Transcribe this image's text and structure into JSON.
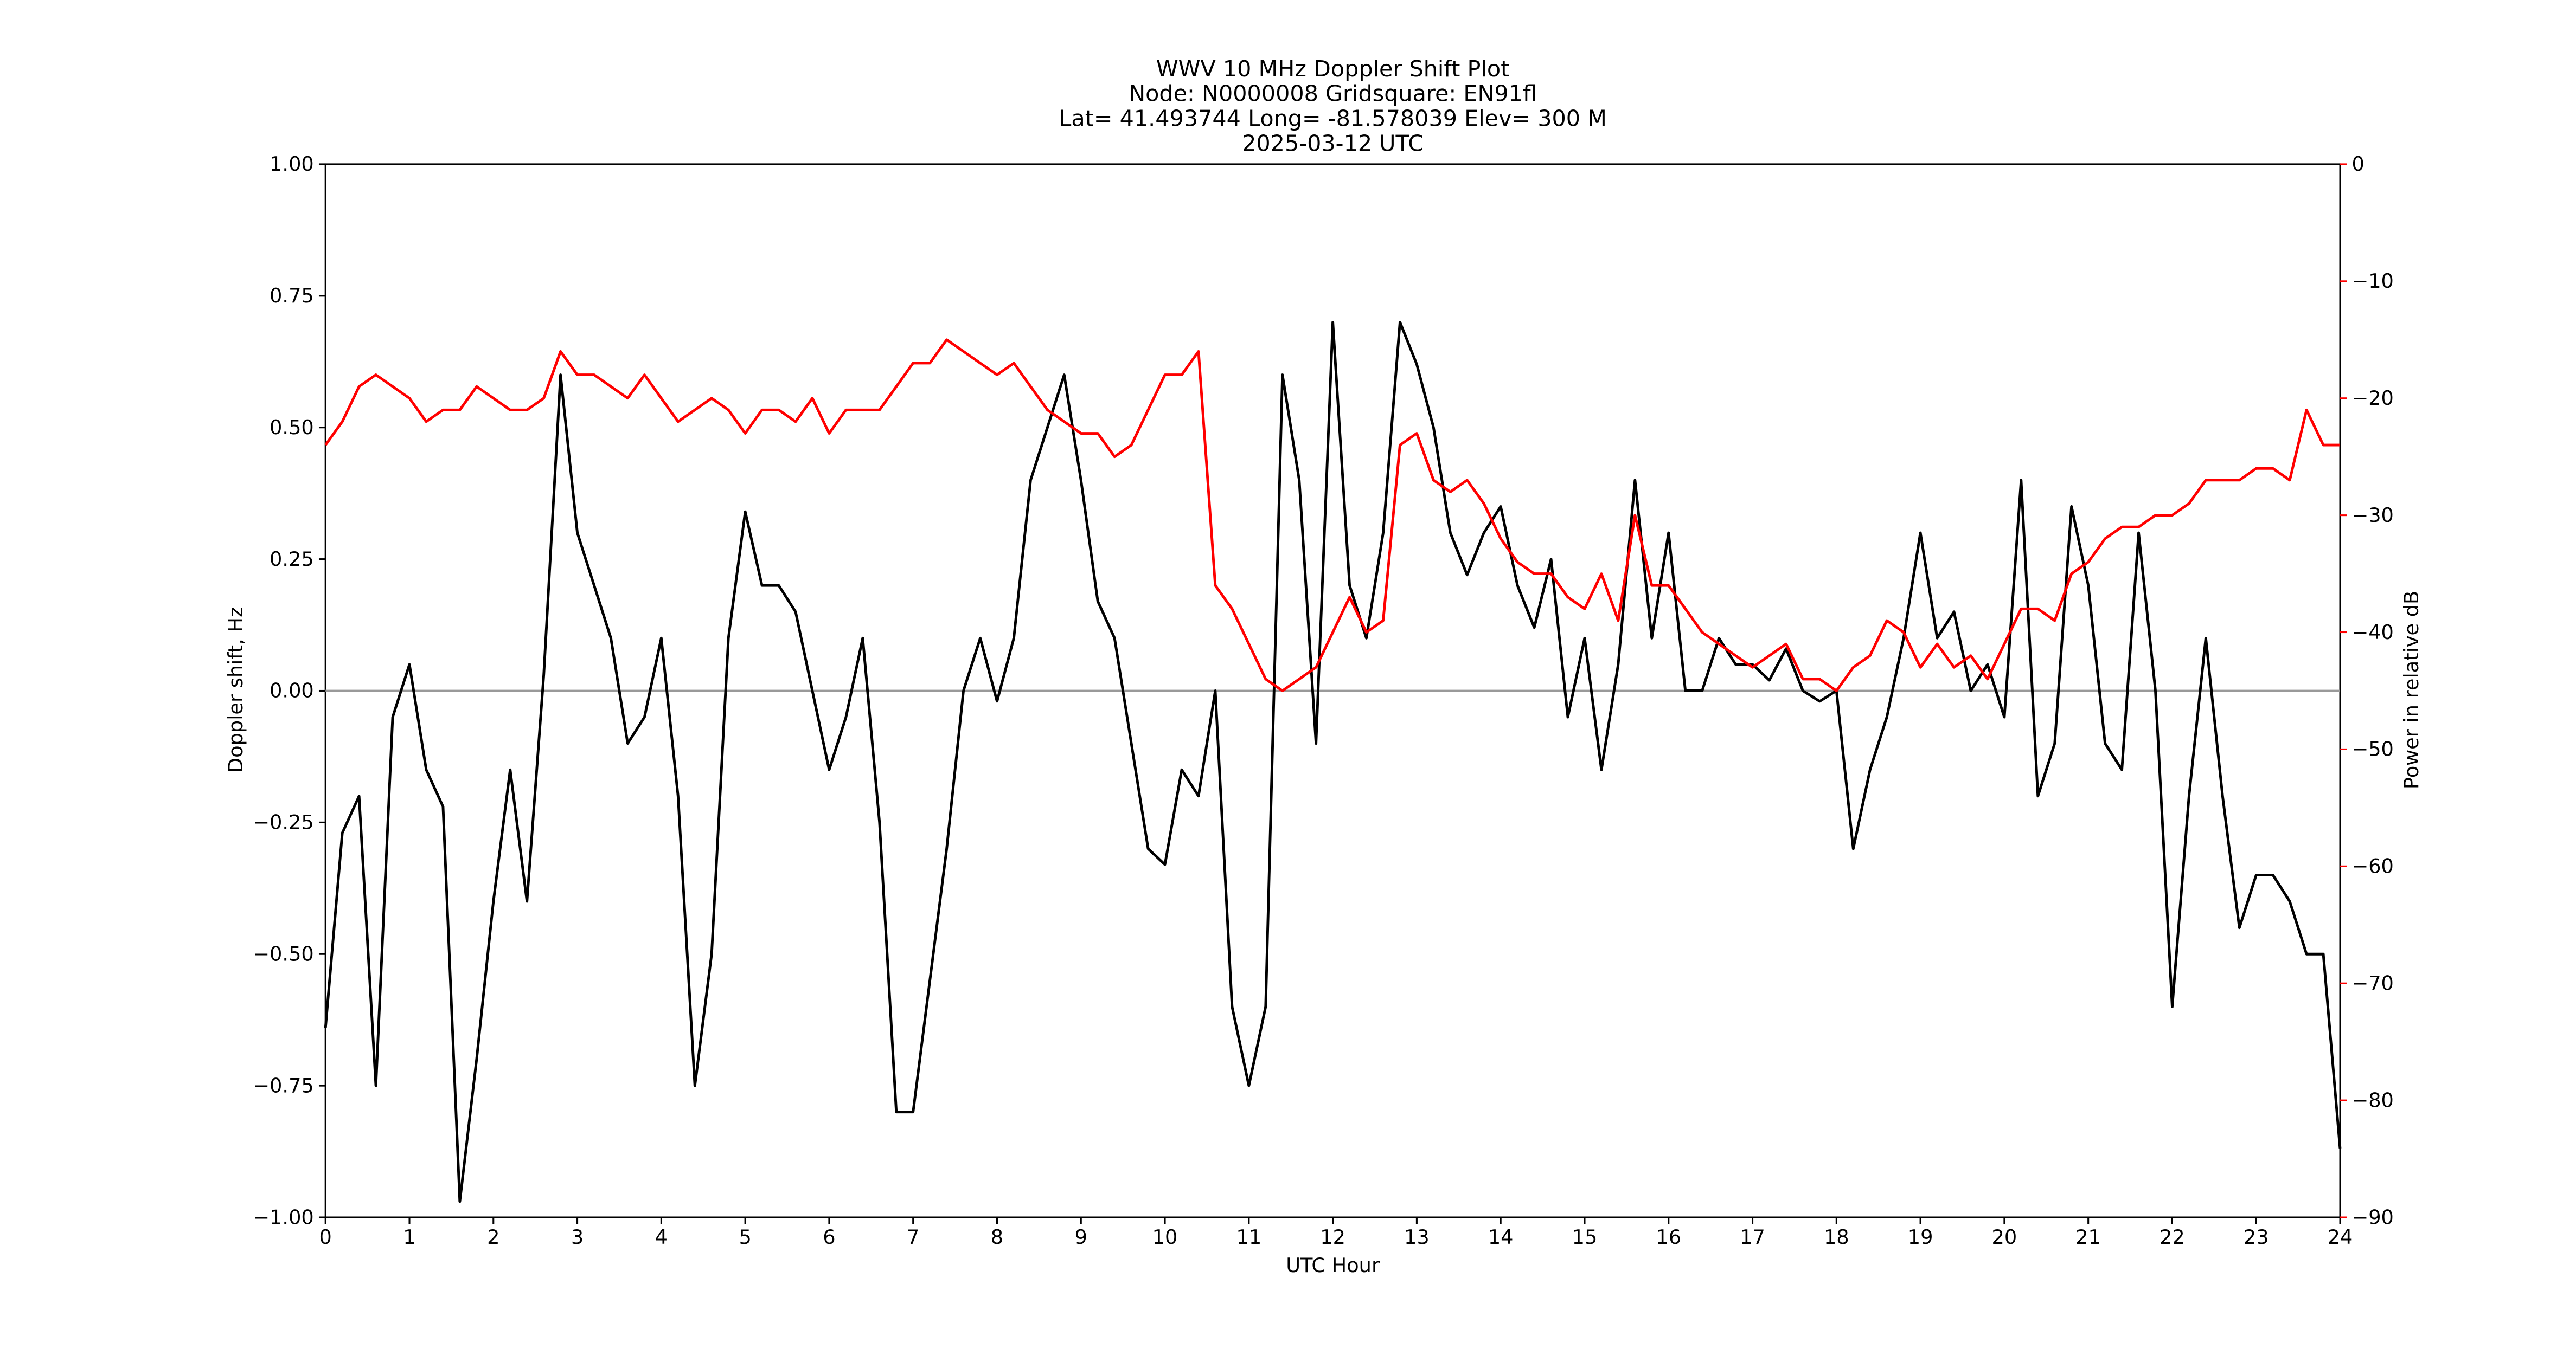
{
  "chart_data": {
    "type": "line",
    "title": [
      "WWV 10 MHz Doppler Shift Plot",
      "Node:  N0000008     Gridsquare:  EN91fl",
      "Lat= 41.493744    Long=  -81.578039    Elev=  300 M",
      "2025-03-12  UTC"
    ],
    "xlabel": "UTC Hour",
    "ylabel": "Doppler shift, Hz",
    "y2label": "Power in relative dB",
    "x": [
      0,
      0.2,
      0.4,
      0.6,
      0.8,
      1,
      1.2,
      1.4,
      1.6,
      1.8,
      2,
      2.2,
      2.4,
      2.6,
      2.8,
      3,
      3.2,
      3.4,
      3.6,
      3.8,
      4,
      4.2,
      4.4,
      4.6,
      4.8,
      5,
      5.2,
      5.4,
      5.6,
      5.8,
      6,
      6.2,
      6.4,
      6.6,
      6.8,
      7,
      7.2,
      7.4,
      7.6,
      7.8,
      8,
      8.2,
      8.4,
      8.6,
      8.8,
      9,
      9.2,
      9.4,
      9.6,
      9.8,
      10,
      10.2,
      10.4,
      10.6,
      10.8,
      11,
      11.2,
      11.4,
      11.6,
      11.8,
      12,
      12.2,
      12.4,
      12.6,
      12.8,
      13,
      13.2,
      13.4,
      13.6,
      13.8,
      14,
      14.2,
      14.4,
      14.6,
      14.8,
      15,
      15.2,
      15.4,
      15.6,
      15.8,
      16,
      16.2,
      16.4,
      16.6,
      16.8,
      17,
      17.2,
      17.4,
      17.6,
      17.8,
      18,
      18.2,
      18.4,
      18.6,
      18.8,
      19,
      19.2,
      19.4,
      19.6,
      19.8,
      20,
      20.2,
      20.4,
      20.6,
      20.8,
      21,
      21.2,
      21.4,
      21.6,
      21.8,
      22,
      22.2,
      22.4,
      22.6,
      22.8,
      23,
      23.2,
      23.4,
      23.6,
      23.8,
      24
    ],
    "series": [
      {
        "name": "Doppler shift",
        "color": "#000000",
        "axis": "y",
        "values": [
          -0.64,
          -0.27,
          -0.2,
          -0.75,
          -0.05,
          0.05,
          -0.15,
          -0.22,
          -0.97,
          -0.7,
          -0.4,
          -0.15,
          -0.4,
          0.03,
          0.6,
          0.3,
          0.2,
          0.1,
          -0.1,
          -0.05,
          0.1,
          -0.2,
          -0.75,
          -0.5,
          0.1,
          0.34,
          0.2,
          0.2,
          0.15,
          0.0,
          -0.15,
          -0.05,
          0.1,
          -0.25,
          -0.8,
          -0.8,
          -0.55,
          -0.3,
          0.0,
          0.1,
          -0.02,
          0.1,
          0.4,
          0.5,
          0.6,
          0.4,
          0.17,
          0.1,
          -0.1,
          -0.3,
          -0.33,
          -0.15,
          -0.2,
          0.0,
          -0.6,
          -0.75,
          -0.6,
          0.6,
          0.4,
          -0.1,
          0.7,
          0.2,
          0.1,
          0.3,
          0.7,
          0.62,
          0.5,
          0.3,
          0.22,
          0.3,
          0.35,
          0.2,
          0.12,
          0.25,
          -0.05,
          0.1,
          -0.15,
          0.05,
          0.4,
          0.1,
          0.3,
          0.0,
          0.0,
          0.1,
          0.05,
          0.05,
          0.02,
          0.08,
          0.0,
          -0.02,
          0.0,
          -0.3,
          -0.15,
          -0.05,
          0.1,
          0.3,
          0.1,
          0.15,
          0.0,
          0.05,
          -0.05,
          0.4,
          -0.2,
          -0.1,
          0.35,
          0.2,
          -0.1,
          -0.15,
          0.3,
          0.0,
          -0.6,
          -0.2,
          0.1,
          -0.2,
          -0.45,
          -0.35,
          -0.35,
          -0.4,
          -0.5,
          -0.5,
          -0.87
        ]
      },
      {
        "name": "Power",
        "color": "#ff0000",
        "axis": "y2",
        "values": [
          -24,
          -22,
          -19,
          -18,
          -19,
          -20,
          -22,
          -21,
          -21,
          -19,
          -20,
          -21,
          -21,
          -20,
          -16,
          -18,
          -18,
          -19,
          -20,
          -18,
          -20,
          -22,
          -21,
          -20,
          -21,
          -23,
          -21,
          -21,
          -22,
          -20,
          -23,
          -21,
          -21,
          -21,
          -19,
          -17,
          -17,
          -15,
          -16,
          -17,
          -18,
          -17,
          -19,
          -21,
          -22,
          -23,
          -23,
          -25,
          -24,
          -21,
          -18,
          -18,
          -16,
          -36,
          -38,
          -41,
          -44,
          -45,
          -44,
          -43,
          -40,
          -37,
          -40,
          -39,
          -24,
          -23,
          -27,
          -28,
          -27,
          -29,
          -32,
          -34,
          -35,
          -35,
          -37,
          -38,
          -35,
          -39,
          -30,
          -36,
          -36,
          -38,
          -40,
          -41,
          -42,
          -43,
          -42,
          -41,
          -44,
          -44,
          -45,
          -43,
          -42,
          -39,
          -40,
          -43,
          -41,
          -43,
          -42,
          -44,
          -41,
          -38,
          -38,
          -39,
          -35,
          -34,
          -32,
          -31,
          -31,
          -30,
          -30,
          -29,
          -27,
          -27,
          -27,
          -26,
          -26,
          -27,
          -21,
          -24,
          -24
        ]
      }
    ],
    "xlim": [
      0,
      24
    ],
    "xticks": [
      0,
      1,
      2,
      3,
      4,
      5,
      6,
      7,
      8,
      9,
      10,
      11,
      12,
      13,
      14,
      15,
      16,
      17,
      18,
      19,
      20,
      21,
      22,
      23,
      24
    ],
    "ylim": [
      -1,
      1
    ],
    "yticks": [
      {
        "value": -1,
        "label": "−1.00"
      },
      {
        "value": -0.75,
        "label": "−0.75"
      },
      {
        "value": -0.5,
        "label": "−0.50"
      },
      {
        "value": -0.25,
        "label": "−0.25"
      },
      {
        "value": 0,
        "label": "0.00"
      },
      {
        "value": 0.25,
        "label": "0.25"
      },
      {
        "value": 0.5,
        "label": "0.50"
      },
      {
        "value": 0.75,
        "label": "0.75"
      },
      {
        "value": 1,
        "label": "1.00"
      }
    ],
    "y2lim": [
      -90,
      0
    ],
    "y2ticks": [
      {
        "value": -90,
        "label": "−90"
      },
      {
        "value": -80,
        "label": "−80"
      },
      {
        "value": -70,
        "label": "−70"
      },
      {
        "value": -60,
        "label": "−60"
      },
      {
        "value": -50,
        "label": "−50"
      },
      {
        "value": -40,
        "label": "−40"
      },
      {
        "value": -30,
        "label": "−30"
      },
      {
        "value": -20,
        "label": "−20"
      },
      {
        "value": -10,
        "label": "−10"
      },
      0
    ],
    "y2color": "#ff0000",
    "hline": 0,
    "hline_color": "#999999"
  }
}
